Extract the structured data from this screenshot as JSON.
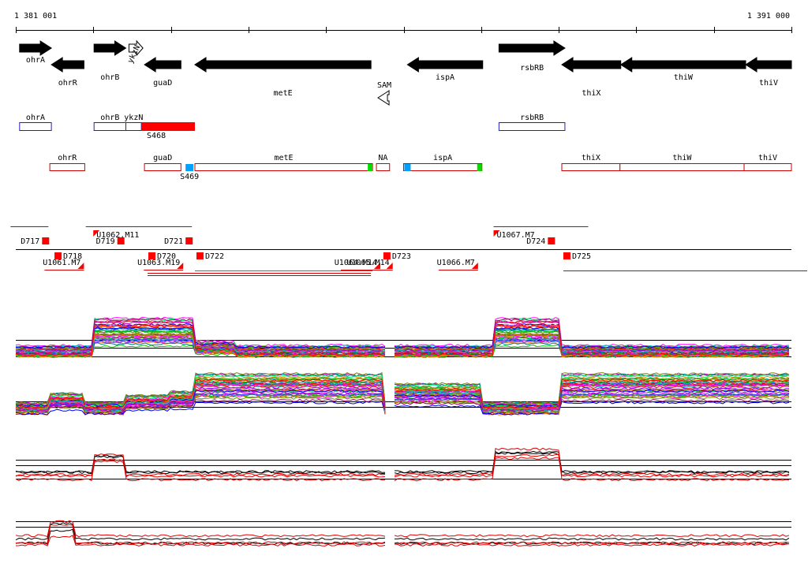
{
  "coordinates": {
    "start_label": "1 381 001",
    "end_label": "1 391 000",
    "start": 1381001,
    "end": 1391000
  },
  "colors": {
    "gene": "#000000",
    "operon": "#2020c0",
    "utr": "#d00000",
    "segment": "#ff0000",
    "pos_marker": "#00a0ff",
    "end_marker": "#00dd00",
    "profile_threshold": "#000000"
  },
  "genes": [
    {
      "label": "ohrA",
      "start": 1381050,
      "end": 1381460,
      "strand": "+",
      "style": "solid"
    },
    {
      "label": "ohrR",
      "start": 1381460,
      "end": 1381880,
      "strand": "-",
      "style": "solid"
    },
    {
      "label": "ohrB",
      "start": 1382010,
      "end": 1382420,
      "strand": "+",
      "style": "solid"
    },
    {
      "label": "ykzN",
      "start": 1382460,
      "end": 1382640,
      "strand": "+",
      "style": "open"
    },
    {
      "label": "guaD",
      "start": 1382660,
      "end": 1383130,
      "strand": "-",
      "style": "solid"
    },
    {
      "label": "metE",
      "start": 1383310,
      "end": 1385580,
      "strand": "-",
      "style": "solid"
    },
    {
      "label": "SAM",
      "start": 1385650,
      "end": 1385820,
      "strand": "-",
      "style": "open"
    },
    {
      "label": "ispA",
      "start": 1386050,
      "end": 1387020,
      "strand": "-",
      "style": "solid"
    },
    {
      "label": "rsbRB",
      "start": 1387230,
      "end": 1388080,
      "strand": "+",
      "style": "solid"
    },
    {
      "label": "thiX",
      "start": 1388040,
      "end": 1388800,
      "strand": "-",
      "style": "solid"
    },
    {
      "label": "thiW",
      "start": 1388800,
      "end": 1390410,
      "strand": "-",
      "style": "solid"
    },
    {
      "label": "thiV",
      "start": 1390410,
      "end": 1391000,
      "strand": "-",
      "style": "solid"
    }
  ],
  "operons_plus": [
    {
      "label": "ohrA",
      "start": 1381050,
      "end": 1381460
    },
    {
      "label": "ohrB",
      "start": 1382010,
      "end": 1382420
    },
    {
      "label": "ykzN",
      "start": 1382420,
      "end": 1382620
    },
    {
      "label": "rsbRB",
      "start": 1387230,
      "end": 1388080
    }
  ],
  "segment_plus": {
    "label": "S468",
    "start": 1382620,
    "end": 1383310
  },
  "operons_minus": [
    {
      "label": "ohrR",
      "start": 1381440,
      "end": 1381890
    },
    {
      "label": "guaD",
      "start": 1382660,
      "end": 1383130,
      "label_only": true
    },
    {
      "label": "metE",
      "start": 1383310,
      "end": 1385600
    },
    {
      "label": "NA",
      "start": 1385650,
      "end": 1385820
    },
    {
      "label": "ispA",
      "start": 1386000,
      "end": 1387010
    },
    {
      "label": "thiX",
      "start": 1388040,
      "end": 1388790
    },
    {
      "label": "thiW",
      "start": 1388790,
      "end": 1390390
    },
    {
      "label": "thiV",
      "start": 1390390,
      "end": 1391000
    }
  ],
  "segment_minus": {
    "label": "S469",
    "start": 1383190,
    "end": 1383290
  },
  "downshifts_plus": [
    {
      "label": "D717",
      "pos": 1381340
    },
    {
      "label": "D719",
      "pos": 1382310
    },
    {
      "label": "D721",
      "pos": 1383190
    },
    {
      "label": "D724",
      "pos": 1387860
    }
  ],
  "downshifts_minus": [
    {
      "label": "D718",
      "pos": 1381500
    },
    {
      "label": "D720",
      "pos": 1382710
    },
    {
      "label": "D722",
      "pos": 1383330
    },
    {
      "label": "D723",
      "pos": 1385740
    },
    {
      "label": "D725",
      "pos": 1388060
    }
  ],
  "upshifts_plus": [
    {
      "label": "U1062.M11",
      "pos": 1382000
    },
    {
      "label": "U1067.M7",
      "pos": 1387160
    }
  ],
  "upshifts_minus": [
    {
      "label": "U1061.M7",
      "pos": 1381880
    },
    {
      "label": "U1063.M19",
      "pos": 1383160
    },
    {
      "label": "U1064.M14",
      "pos": 1385700
    },
    {
      "label": "U1065.M14",
      "pos": 1385860
    },
    {
      "label": "U1066.M7",
      "pos": 1386960
    }
  ]
}
